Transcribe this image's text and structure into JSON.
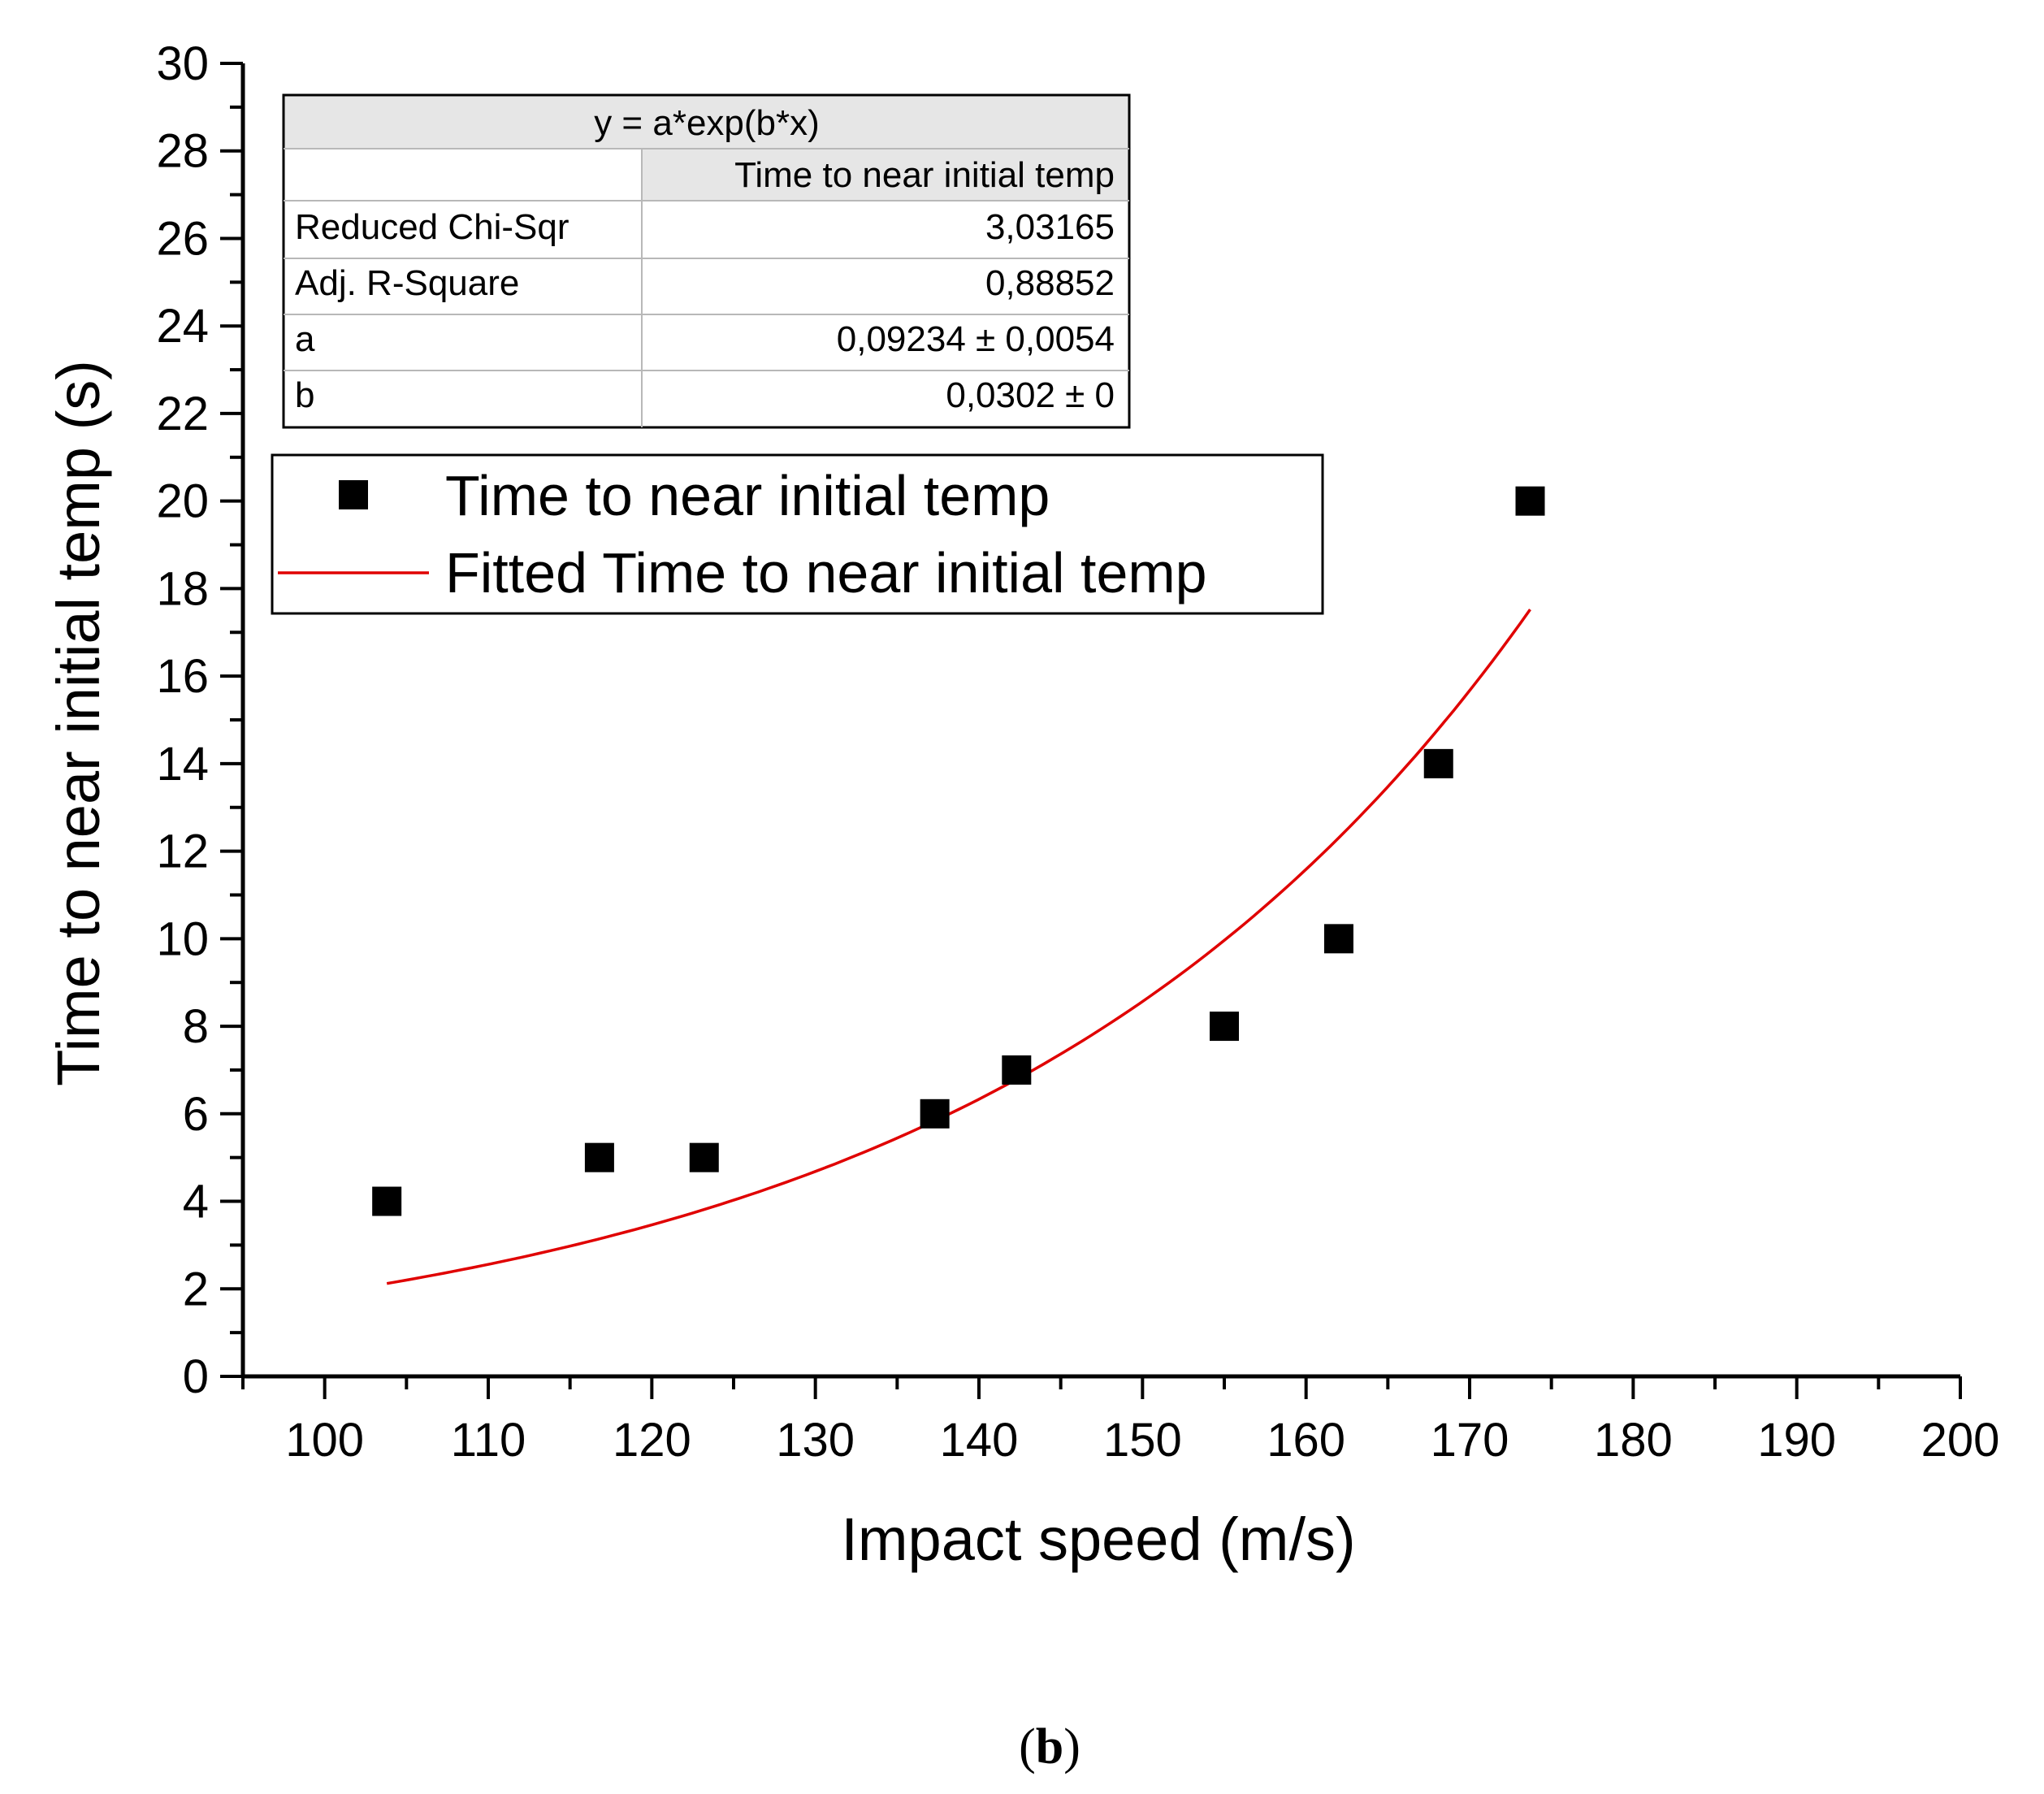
{
  "chart_data": {
    "type": "scatter",
    "title": "",
    "xlabel": "Impact speed (m/s)",
    "ylabel": "Time to near initial temp (s)",
    "xlim": [
      95,
      200
    ],
    "ylim": [
      0,
      30
    ],
    "xticks": [
      100,
      110,
      120,
      130,
      140,
      150,
      160,
      170,
      180,
      190,
      200
    ],
    "yticks": [
      0,
      2,
      4,
      6,
      8,
      10,
      12,
      14,
      16,
      18,
      20,
      22,
      24,
      26,
      28,
      30
    ],
    "series": [
      {
        "name": "Time to near initial temp",
        "kind": "scatter",
        "marker": "square",
        "color": "#000000",
        "x": [
          103.8,
          116.8,
          123.2,
          137.3,
          142.3,
          155.0,
          162.0,
          168.1,
          173.7
        ],
        "y": [
          4,
          5,
          5,
          6,
          7,
          8,
          10,
          14,
          20
        ]
      },
      {
        "name": "Fitted Time to near initial temp",
        "kind": "line",
        "color": "#e00000",
        "model": "exp",
        "a": 0.09234,
        "b": 0.0302,
        "x_range": [
          103.8,
          173.7
        ]
      }
    ],
    "legend": {
      "placement": "upper-left",
      "entries": [
        "Time to near initial temp",
        "Fitted Time to near initial temp"
      ]
    },
    "fit_table": {
      "equation": "y = a*exp(b*x)",
      "column_header": "Time to near initial temp",
      "rows": [
        {
          "label": "Reduced Chi-Sqr",
          "value": "3,03165"
        },
        {
          "label": "Adj. R-Square",
          "value": "0,88852"
        },
        {
          "label": "a",
          "value": "0,09234 ± 0,0054"
        },
        {
          "label": "b",
          "value": "0,0302 ± 0"
        }
      ]
    }
  },
  "caption": {
    "open": "(",
    "letter": "b",
    "close": ")"
  }
}
